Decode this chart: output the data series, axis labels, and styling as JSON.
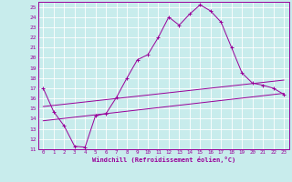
{
  "xlabel": "Windchill (Refroidissement éolien,°C)",
  "bg_color": "#c8ecec",
  "line_color": "#990099",
  "grid_color": "#ffffff",
  "xlim": [
    -0.5,
    23.5
  ],
  "ylim": [
    11,
    25.5
  ],
  "xticks": [
    0,
    1,
    2,
    3,
    4,
    5,
    6,
    7,
    8,
    9,
    10,
    11,
    12,
    13,
    14,
    15,
    16,
    17,
    18,
    19,
    20,
    21,
    22,
    23
  ],
  "yticks": [
    11,
    12,
    13,
    14,
    15,
    16,
    17,
    18,
    19,
    20,
    21,
    22,
    23,
    24,
    25
  ],
  "line1_x": [
    0,
    1,
    2,
    3,
    4,
    5,
    6,
    7,
    8,
    9,
    10,
    11,
    12,
    13,
    14,
    15,
    16,
    17,
    18,
    19,
    20,
    21,
    22,
    23
  ],
  "line1_y": [
    17.0,
    14.7,
    13.3,
    11.3,
    11.2,
    14.3,
    14.5,
    16.1,
    18.0,
    19.8,
    20.3,
    22.0,
    24.0,
    23.2,
    24.3,
    25.2,
    24.6,
    23.5,
    21.0,
    18.5,
    17.5,
    17.3,
    17.0,
    16.4
  ],
  "line3_x": [
    0,
    23
  ],
  "line3_y": [
    15.2,
    17.8
  ],
  "line4_x": [
    0,
    23
  ],
  "line4_y": [
    13.8,
    16.5
  ],
  "marker": "+"
}
